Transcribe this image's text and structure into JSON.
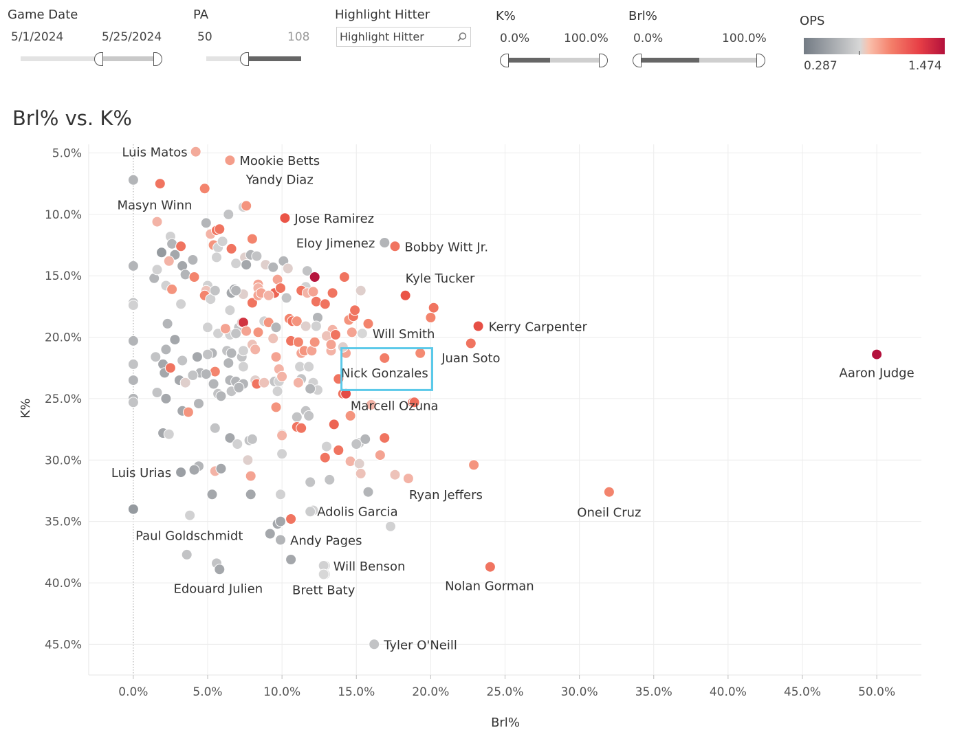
{
  "filters": {
    "game_date": {
      "title": "Game Date",
      "min": "5/1/2024",
      "max": "5/25/2024"
    },
    "pa": {
      "title": "PA",
      "min": "50",
      "max": "108"
    },
    "highlight": {
      "title": "Highlight Hitter",
      "placeholder": "Highlight Hitter"
    },
    "k_pct": {
      "title": "K%",
      "min": "0.0%",
      "max": "100.0%"
    },
    "brl_pct": {
      "title": "Brl%",
      "min": "0.0%",
      "max": "100.0%"
    },
    "ops": {
      "title": "OPS",
      "min": "0.287",
      "max": "1.474"
    }
  },
  "colors": {
    "gray_dark": "#737b84",
    "gray_mid": "#a4a7ab",
    "gray_light": "#d7d7d7",
    "pink_light": "#f3bdb2",
    "salmon": "#f48a72",
    "red": "#ea5446",
    "crimson": "#b3113c",
    "highlight_box": "#5bc9e9"
  },
  "chart_data": {
    "type": "scatter",
    "title": "Brl% vs. K%",
    "xlabel": "Brl%",
    "ylabel": "K%",
    "xlim": [
      -3,
      53
    ],
    "ylim": [
      4.3,
      47.5
    ],
    "y_inverted": true,
    "xticks": [
      0,
      5,
      10,
      15,
      20,
      25,
      30,
      35,
      40,
      45,
      50
    ],
    "xtick_labels": [
      "0.0%",
      "5.0%",
      "10.0%",
      "15.0%",
      "20.0%",
      "25.0%",
      "30.0%",
      "35.0%",
      "40.0%",
      "45.0%",
      "50.0%"
    ],
    "yticks": [
      5,
      10,
      15,
      20,
      25,
      30,
      35,
      40,
      45
    ],
    "ytick_labels": [
      "5.0%",
      "10.0%",
      "15.0%",
      "20.0%",
      "25.0%",
      "30.0%",
      "35.0%",
      "40.0%",
      "45.0%"
    ],
    "color_metric": "OPS",
    "highlight_box": {
      "label": "Nick Gonzales",
      "x": [
        14.0,
        20.1
      ],
      "y": [
        20.9,
        24.3
      ]
    },
    "labeled_points": [
      {
        "name": "Luis Matos",
        "x": 4.2,
        "y": 4.9,
        "ops": 0.78
      },
      {
        "name": "Mookie Betts",
        "x": 6.5,
        "y": 5.6,
        "ops": 0.82
      },
      {
        "name": "Yandy Diaz",
        "x": 4.8,
        "y": 7.9,
        "ops": 0.9
      },
      {
        "name": "Masyn Winn",
        "x": 1.6,
        "y": 10.6,
        "ops": 0.75
      },
      {
        "name": "Jose Ramirez",
        "x": 10.2,
        "y": 10.3,
        "ops": 1.05
      },
      {
        "name": "Eloy Jimenez",
        "x": 16.9,
        "y": 12.3,
        "ops": 0.5
      },
      {
        "name": "Bobby Witt Jr.",
        "x": 17.6,
        "y": 12.6,
        "ops": 0.95
      },
      {
        "name": "Kyle Tucker",
        "x": 18.3,
        "y": 16.6,
        "ops": 1.05
      },
      {
        "name": "Kerry Carpenter",
        "x": 23.2,
        "y": 19.1,
        "ops": 1.08
      },
      {
        "name": "Will Smith",
        "x": 15.4,
        "y": 19.7,
        "ops": 0.62
      },
      {
        "name": "Juan Soto",
        "x": 19.3,
        "y": 21.3,
        "ops": 0.88
      },
      {
        "name": "Nick Gonzales",
        "x": 16.9,
        "y": 21.7,
        "ops": 0.92
      },
      {
        "name": "Aaron Judge",
        "x": 50.0,
        "y": 21.4,
        "ops": 1.474
      },
      {
        "name": "Marcell Ozuna",
        "x": 18.9,
        "y": 25.3,
        "ops": 0.97
      },
      {
        "name": "Luis Urias",
        "x": 3.2,
        "y": 31.0,
        "ops": 0.42
      },
      {
        "name": "Ryan Jeffers",
        "x": 18.5,
        "y": 31.5,
        "ops": 0.75
      },
      {
        "name": "Oneil Cruz",
        "x": 32.0,
        "y": 32.6,
        "ops": 0.9
      },
      {
        "name": "Adolis Garcia",
        "x": 11.9,
        "y": 34.2,
        "ops": 0.58
      },
      {
        "name": "Paul Goldschmidt",
        "x": 3.8,
        "y": 34.5,
        "ops": 0.6
      },
      {
        "name": "Andy Pages",
        "x": 9.9,
        "y": 36.5,
        "ops": 0.5
      },
      {
        "name": "Will Benson",
        "x": 12.8,
        "y": 38.6,
        "ops": 0.6
      },
      {
        "name": "Nolan Gorman",
        "x": 24.0,
        "y": 38.7,
        "ops": 0.95
      },
      {
        "name": "Edouard Julien",
        "x": 5.8,
        "y": 38.9,
        "ops": 0.45
      },
      {
        "name": "Brett Baty",
        "x": 12.8,
        "y": 39.3,
        "ops": 0.62
      },
      {
        "name": "Tyler O'Neill",
        "x": 16.2,
        "y": 45.0,
        "ops": 0.55
      }
    ],
    "points": [
      [
        0,
        7.2,
        0.5
      ],
      [
        0,
        14.2,
        0.5
      ],
      [
        0,
        17.2,
        0.55
      ],
      [
        0,
        17.4,
        0.6
      ],
      [
        0,
        20.3,
        0.5
      ],
      [
        0,
        22.2,
        0.55
      ],
      [
        0,
        23.5,
        0.5
      ],
      [
        0,
        25.0,
        0.5
      ],
      [
        0,
        25.3,
        0.55
      ],
      [
        0,
        34.0,
        0.4
      ],
      [
        1.8,
        7.5,
        0.95
      ],
      [
        1.4,
        15.2,
        0.5
      ],
      [
        1.6,
        14.5,
        0.6
      ],
      [
        1.5,
        21.6,
        0.55
      ],
      [
        1.9,
        13.1,
        0.4
      ],
      [
        2.2,
        15.8,
        0.6
      ],
      [
        2.0,
        22.2,
        0.45
      ],
      [
        2.1,
        22.9,
        0.45
      ],
      [
        1.6,
        24.5,
        0.55
      ],
      [
        2.2,
        21.0,
        0.5
      ],
      [
        2.5,
        11.8,
        0.6
      ],
      [
        2.6,
        12.4,
        0.5
      ],
      [
        2.8,
        13.3,
        0.45
      ],
      [
        2.4,
        13.8,
        0.75
      ],
      [
        2.6,
        16.1,
        0.85
      ],
      [
        2.3,
        18.9,
        0.5
      ],
      [
        2.8,
        20.2,
        0.45
      ],
      [
        2.5,
        22.5,
        0.95
      ],
      [
        2.2,
        25.0,
        0.45
      ],
      [
        2.0,
        27.8,
        0.45
      ],
      [
        3.2,
        12.6,
        0.95
      ],
      [
        3.3,
        14.2,
        0.45
      ],
      [
        3.5,
        14.9,
        0.5
      ],
      [
        3.2,
        17.3,
        0.6
      ],
      [
        3.3,
        21.9,
        0.55
      ],
      [
        3.1,
        23.5,
        0.45
      ],
      [
        3.5,
        23.7,
        0.65
      ],
      [
        3.3,
        26.0,
        0.45
      ],
      [
        3.7,
        26.1,
        0.85
      ],
      [
        2.4,
        27.9,
        0.6
      ],
      [
        4.0,
        13.7,
        0.5
      ],
      [
        4.1,
        15.1,
        0.9
      ],
      [
        4.3,
        21.6,
        0.45
      ],
      [
        4.5,
        22.9,
        0.5
      ],
      [
        4.0,
        23.1,
        0.55
      ],
      [
        4.4,
        25.4,
        0.5
      ],
      [
        4.4,
        30.5,
        0.5
      ],
      [
        4.1,
        30.8,
        0.45
      ],
      [
        3.8,
        34.5,
        0.6
      ],
      [
        3.6,
        37.7,
        0.55
      ],
      [
        4.9,
        10.7,
        0.5
      ],
      [
        5.2,
        11.6,
        0.75
      ],
      [
        5.6,
        11.3,
        0.95
      ],
      [
        5.8,
        11.2,
        0.95
      ],
      [
        5.4,
        12.5,
        0.85
      ],
      [
        5.7,
        12.7,
        0.6
      ],
      [
        5.6,
        13.5,
        0.6
      ],
      [
        5.0,
        15.8,
        0.6
      ],
      [
        4.9,
        16.2,
        0.7
      ],
      [
        4.8,
        16.6,
        0.9
      ],
      [
        5.2,
        16.9,
        0.6
      ],
      [
        5.5,
        16.2,
        0.55
      ],
      [
        5.0,
        19.2,
        0.6
      ],
      [
        5.7,
        19.7,
        0.6
      ],
      [
        5.3,
        21.3,
        0.5
      ],
      [
        5.0,
        21.4,
        0.55
      ],
      [
        5.5,
        22.8,
        0.9
      ],
      [
        5.4,
        23.8,
        0.5
      ],
      [
        4.9,
        23.0,
        0.5
      ],
      [
        5.7,
        24.6,
        0.55
      ],
      [
        5.9,
        24.8,
        0.5
      ],
      [
        5.5,
        27.4,
        0.55
      ],
      [
        5.5,
        30.9,
        0.75
      ],
      [
        5.9,
        30.7,
        0.45
      ],
      [
        5.3,
        32.8,
        0.45
      ],
      [
        5.6,
        38.4,
        0.55
      ],
      [
        6.0,
        12.2,
        0.6
      ],
      [
        6.4,
        10.0,
        0.55
      ],
      [
        6.6,
        12.8,
        0.95
      ],
      [
        6.9,
        14.0,
        0.6
      ],
      [
        6.6,
        16.4,
        0.45
      ],
      [
        6.8,
        16.1,
        0.45
      ],
      [
        7.4,
        16.5,
        0.65
      ],
      [
        6.9,
        16.2,
        0.5
      ],
      [
        6.5,
        17.8,
        0.6
      ],
      [
        7.1,
        19.2,
        0.55
      ],
      [
        6.5,
        19.8,
        0.6
      ],
      [
        6.9,
        19.7,
        0.55
      ],
      [
        6.2,
        19.3,
        0.8
      ],
      [
        7.3,
        18.8,
        0.65
      ],
      [
        6.3,
        21.1,
        0.55
      ],
      [
        6.6,
        21.3,
        0.5
      ],
      [
        7.3,
        21.6,
        0.55
      ],
      [
        7.4,
        21.1,
        0.6
      ],
      [
        6.4,
        22.1,
        0.5
      ],
      [
        7.4,
        22.4,
        0.6
      ],
      [
        6.5,
        23.5,
        0.5
      ],
      [
        6.6,
        24.4,
        0.55
      ],
      [
        6.9,
        23.6,
        0.5
      ],
      [
        7.4,
        23.8,
        0.5
      ],
      [
        7.1,
        24.1,
        0.5
      ],
      [
        6.5,
        28.2,
        0.45
      ],
      [
        7.0,
        28.7,
        0.6
      ],
      [
        7.8,
        28.4,
        0.55
      ],
      [
        7.7,
        30.0,
        0.65
      ],
      [
        7.9,
        31.3,
        0.8
      ],
      [
        8.0,
        28.3,
        0.55
      ],
      [
        7.9,
        32.8,
        0.45
      ],
      [
        7.4,
        9.4,
        0.6
      ],
      [
        7.6,
        9.3,
        0.85
      ],
      [
        7.5,
        13.5,
        0.65
      ],
      [
        7.9,
        13.3,
        0.5
      ],
      [
        8.3,
        13.4,
        0.55
      ],
      [
        7.6,
        14.1,
        0.45
      ],
      [
        8.0,
        12.0,
        0.9
      ],
      [
        8.4,
        15.7,
        0.8
      ],
      [
        8.4,
        16.0,
        0.75
      ],
      [
        8.0,
        17.2,
        0.95
      ],
      [
        8.4,
        16.6,
        0.8
      ],
      [
        8.6,
        16.4,
        0.8
      ],
      [
        7.4,
        18.8,
        1.25
      ],
      [
        7.6,
        19.5,
        0.8
      ],
      [
        8.4,
        19.6,
        0.85
      ],
      [
        8.0,
        20.6,
        0.7
      ],
      [
        8.2,
        21.0,
        0.75
      ],
      [
        8.2,
        23.5,
        0.65
      ],
      [
        8.3,
        23.8,
        0.95
      ],
      [
        8.8,
        23.7,
        0.7
      ],
      [
        8.8,
        18.7,
        0.6
      ],
      [
        9.1,
        18.8,
        0.85
      ],
      [
        8.9,
        14.1,
        0.65
      ],
      [
        9.4,
        14.3,
        0.5
      ],
      [
        9.7,
        15.3,
        0.8
      ],
      [
        9.5,
        16.4,
        1.0
      ],
      [
        9.1,
        16.6,
        0.75
      ],
      [
        9.9,
        16.0,
        0.95
      ],
      [
        9.6,
        19.2,
        0.5
      ],
      [
        9.4,
        20.1,
        0.7
      ],
      [
        9.6,
        21.6,
        0.8
      ],
      [
        9.8,
        22.6,
        0.75
      ],
      [
        9.5,
        23.6,
        0.55
      ],
      [
        9.8,
        23.6,
        0.6
      ],
      [
        10.0,
        23.2,
        0.75
      ],
      [
        9.7,
        24.4,
        0.6
      ],
      [
        9.6,
        25.7,
        0.85
      ],
      [
        10.0,
        27.9,
        0.6
      ],
      [
        10.0,
        28.0,
        0.75
      ],
      [
        10.0,
        29.5,
        0.6
      ],
      [
        9.9,
        32.8,
        0.6
      ],
      [
        9.7,
        35.2,
        0.45
      ],
      [
        9.9,
        35.0,
        0.45
      ],
      [
        9.2,
        36.0,
        0.45
      ],
      [
        9.9,
        36.5,
        0.5
      ],
      [
        10.1,
        13.8,
        0.5
      ],
      [
        10.4,
        14.4,
        0.65
      ],
      [
        10.3,
        16.8,
        0.55
      ],
      [
        10.5,
        18.5,
        0.9
      ],
      [
        10.7,
        18.7,
        0.95
      ],
      [
        11.0,
        18.7,
        0.85
      ],
      [
        10.6,
        20.3,
        0.95
      ],
      [
        11.1,
        20.4,
        0.9
      ],
      [
        11.3,
        21.3,
        0.8
      ],
      [
        11.5,
        21.1,
        0.85
      ],
      [
        11.2,
        22.4,
        0.6
      ],
      [
        11.3,
        23.4,
        0.55
      ],
      [
        11.1,
        23.7,
        0.75
      ],
      [
        11.0,
        26.5,
        0.55
      ],
      [
        11.0,
        27.3,
        0.95
      ],
      [
        11.3,
        27.4,
        0.95
      ],
      [
        10.6,
        34.8,
        0.95
      ],
      [
        10.6,
        38.1,
        0.45
      ],
      [
        11.6,
        15.9,
        0.6
      ],
      [
        11.3,
        16.2,
        0.95
      ],
      [
        11.7,
        16.4,
        0.75
      ],
      [
        12.1,
        16.3,
        0.8
      ],
      [
        11.7,
        14.6,
        0.55
      ],
      [
        12.3,
        17.1,
        0.95
      ],
      [
        11.6,
        19.1,
        0.65
      ],
      [
        12.4,
        18.4,
        0.5
      ],
      [
        12.3,
        19.1,
        0.6
      ],
      [
        12.0,
        21.1,
        0.8
      ],
      [
        12.2,
        20.4,
        0.85
      ],
      [
        11.8,
        22.4,
        0.6
      ],
      [
        12.1,
        23.7,
        0.6
      ],
      [
        12.4,
        24.3,
        0.6
      ],
      [
        11.9,
        24.2,
        0.5
      ],
      [
        11.6,
        26.0,
        0.55
      ],
      [
        11.8,
        26.4,
        0.55
      ],
      [
        11.9,
        31.8,
        0.55
      ],
      [
        12.1,
        34.1,
        0.6
      ],
      [
        12.9,
        17.3,
        0.95
      ],
      [
        13.4,
        19.4,
        0.75
      ],
      [
        13.4,
        16.4,
        0.95
      ],
      [
        13.0,
        19.9,
        0.7
      ],
      [
        13.3,
        21.1,
        0.75
      ],
      [
        13.3,
        20.6,
        0.8
      ],
      [
        13.6,
        19.8,
        0.95
      ],
      [
        13.5,
        27.1,
        1.0
      ],
      [
        13.0,
        28.9,
        0.6
      ],
      [
        12.9,
        29.8,
        0.95
      ],
      [
        13.2,
        31.6,
        0.55
      ],
      [
        12.9,
        38.6,
        0.6
      ],
      [
        12.9,
        39.3,
        0.62
      ],
      [
        14.1,
        24.6,
        0.95
      ],
      [
        14.3,
        24.6,
        1.1
      ],
      [
        14.2,
        15.1,
        0.95
      ],
      [
        14.5,
        18.6,
        0.85
      ],
      [
        14.8,
        18.3,
        0.95
      ],
      [
        14.7,
        19.6,
        0.8
      ],
      [
        14.3,
        21.3,
        0.8
      ],
      [
        14.6,
        26.4,
        0.85
      ],
      [
        14.6,
        30.1,
        0.75
      ],
      [
        13.8,
        29.2,
        0.95
      ],
      [
        15.3,
        16.2,
        0.65
      ],
      [
        14.1,
        20.8,
        0.65
      ],
      [
        15.2,
        28.6,
        0.55
      ],
      [
        15.2,
        30.3,
        0.65
      ],
      [
        15.3,
        31.1,
        0.7
      ],
      [
        15.8,
        32.6,
        0.5
      ],
      [
        17.3,
        35.4,
        0.6
      ],
      [
        16.6,
        29.6,
        0.8
      ],
      [
        16.9,
        28.2,
        0.95
      ],
      [
        15.8,
        18.9,
        0.9
      ],
      [
        14.9,
        17.8,
        0.95
      ],
      [
        13.8,
        23.4,
        0.95
      ],
      [
        15.6,
        28.3,
        0.5
      ],
      [
        15.0,
        28.7,
        0.55
      ],
      [
        17.6,
        31.2,
        0.7
      ],
      [
        16.0,
        25.5,
        0.75
      ],
      [
        20.2,
        17.6,
        0.95
      ],
      [
        20.0,
        18.4,
        0.9
      ],
      [
        22.7,
        20.5,
        0.95
      ],
      [
        22.9,
        30.4,
        0.85
      ],
      [
        18.8,
        25.3,
        1.0
      ],
      [
        12.2,
        15.1,
        1.45
      ]
    ]
  }
}
